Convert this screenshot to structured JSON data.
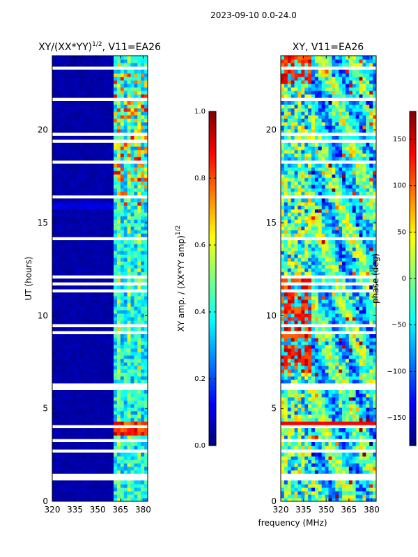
{
  "chart_data": {
    "type": "heatmap",
    "suptitle": "2023-09-10 0.0-24.0",
    "xlabel": "frequency (MHz)",
    "ylabel": "UT (hours)",
    "xlim": [
      320,
      383
    ],
    "ylim": [
      0,
      24
    ],
    "xticks": [
      320,
      335,
      350,
      365,
      380
    ],
    "yticks": [
      0,
      5,
      10,
      15,
      20
    ],
    "flagged_hours": [
      [
        1.3,
        1.45
      ],
      [
        11.75,
        11.9
      ],
      [
        22.6,
        22.75
      ]
    ],
    "colormap": [
      "#00007f",
      "#0000ff",
      "#007fff",
      "#00ffff",
      "#7fff7f",
      "#ffff00",
      "#ff7f00",
      "#ff0000",
      "#7f0000"
    ],
    "panels": [
      {
        "id": "amplitude",
        "title_main": "XY/(XX*YY)",
        "title_sup": "1/2",
        "title_rest": ", V11=EA26",
        "colorbar": {
          "label_main": "XY amp. / (XX*YY amp)",
          "label_sup": "1/2",
          "range": [
            0.0,
            1.0
          ],
          "ticks": [
            "0.0",
            "0.2",
            "0.4",
            "0.6",
            "0.8",
            "1.0"
          ]
        }
      },
      {
        "id": "phase",
        "title_main": "XY, V11=EA26",
        "colorbar": {
          "label_main": "phase (deg)",
          "range": [
            -180,
            180
          ],
          "tick_values": [
            -150,
            -100,
            -50,
            0,
            50,
            100,
            150
          ],
          "ticks": [
            "−150",
            "−100",
            "−50",
            "0",
            "50",
            "100",
            "150"
          ]
        }
      }
    ]
  }
}
